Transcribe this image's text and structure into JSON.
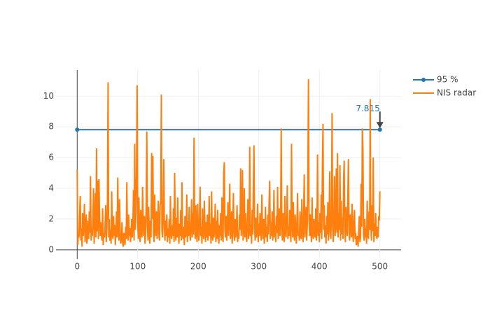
{
  "chart_data": {
    "type": "line",
    "series": [
      {
        "name": "95 %",
        "color": "#1f77b4",
        "markers": true,
        "x": [
          0,
          500
        ],
        "values": [
          7.815,
          7.815
        ]
      },
      {
        "name": "NIS radar",
        "color": "#ff7f0e",
        "markers": false,
        "x": [
          0,
          1,
          2,
          3,
          4,
          5,
          6,
          7,
          8,
          9,
          10,
          11,
          12,
          13,
          14,
          15,
          16,
          17,
          18,
          19,
          20,
          21,
          22,
          23,
          24,
          25,
          26,
          27,
          28,
          29,
          30,
          31,
          32,
          33,
          34,
          35,
          36,
          37,
          38,
          39,
          40,
          41,
          42,
          43,
          44,
          45,
          46,
          47,
          48,
          49,
          50,
          51,
          52,
          53,
          54,
          55,
          56,
          57,
          58,
          59,
          60,
          61,
          62,
          63,
          64,
          65,
          66,
          67,
          68,
          69,
          70,
          71,
          72,
          73,
          74,
          75,
          76,
          77,
          78,
          79,
          80,
          81,
          82,
          83,
          84,
          85,
          86,
          87,
          88,
          89,
          90,
          91,
          92,
          93,
          94,
          95,
          96,
          97,
          98,
          99,
          100,
          101,
          102,
          103,
          104,
          105,
          106,
          107,
          108,
          109,
          110,
          111,
          112,
          113,
          114,
          115,
          116,
          117,
          118,
          119,
          120,
          121,
          122,
          123,
          124,
          125,
          126,
          127,
          128,
          129,
          130,
          131,
          132,
          133,
          134,
          135,
          136,
          137,
          138,
          139,
          140,
          141,
          142,
          143,
          144,
          145,
          146,
          147,
          148,
          149,
          150,
          151,
          152,
          153,
          154,
          155,
          156,
          157,
          158,
          159,
          160,
          161,
          162,
          163,
          164,
          165,
          166,
          167,
          168,
          169,
          170,
          171,
          172,
          173,
          174,
          175,
          176,
          177,
          178,
          179,
          180,
          181,
          182,
          183,
          184,
          185,
          186,
          187,
          188,
          189,
          190,
          191,
          192,
          193,
          194,
          195,
          196,
          197,
          198,
          199,
          200,
          201,
          202,
          203,
          204,
          205,
          206,
          207,
          208,
          209,
          210,
          211,
          212,
          213,
          214,
          215,
          216,
          217,
          218,
          219,
          220,
          221,
          222,
          223,
          224,
          225,
          226,
          227,
          228,
          229,
          230,
          231,
          232,
          233,
          234,
          235,
          236,
          237,
          238,
          239,
          240,
          241,
          242,
          243,
          244,
          245,
          246,
          247,
          248,
          249,
          250,
          251,
          252,
          253,
          254,
          255,
          256,
          257,
          258,
          259,
          260,
          261,
          262,
          263,
          264,
          265,
          266,
          267,
          268,
          269,
          270,
          271,
          272,
          273,
          274,
          275,
          276,
          277,
          278,
          279,
          280,
          281,
          282,
          283,
          284,
          285,
          286,
          287,
          288,
          289,
          290,
          291,
          292,
          293,
          294,
          295,
          296,
          297,
          298,
          299,
          300,
          301,
          302,
          303,
          304,
          305,
          306,
          307,
          308,
          309,
          310,
          311,
          312,
          313,
          314,
          315,
          316,
          317,
          318,
          319,
          320,
          321,
          322,
          323,
          324,
          325,
          326,
          327,
          328,
          329,
          330,
          331,
          332,
          333,
          334,
          335,
          336,
          337,
          338,
          339,
          340,
          341,
          342,
          343,
          344,
          345,
          346,
          347,
          348,
          349,
          350,
          351,
          352,
          353,
          354,
          355,
          356,
          357,
          358,
          359,
          360,
          361,
          362,
          363,
          364,
          365,
          366,
          367,
          368,
          369,
          370,
          371,
          372,
          373,
          374,
          375,
          376,
          377,
          378,
          379,
          380,
          381,
          382,
          383,
          384,
          385,
          386,
          387,
          388,
          389,
          390,
          391,
          392,
          393,
          394,
          395,
          396,
          397,
          398,
          399,
          400,
          401,
          402,
          403,
          404,
          405,
          406,
          407,
          408,
          409,
          410,
          411,
          412,
          413,
          414,
          415,
          416,
          417,
          418,
          419,
          420,
          421,
          422,
          423,
          424,
          425,
          426,
          427,
          428,
          429,
          430,
          431,
          432,
          433,
          434,
          435,
          436,
          437,
          438,
          439,
          440,
          441,
          442,
          443,
          444,
          445,
          446,
          447,
          448,
          449,
          450,
          451,
          452,
          453,
          454,
          455,
          456,
          457,
          458,
          459,
          460,
          461,
          462,
          463,
          464,
          465,
          466,
          467,
          468,
          469,
          470,
          471,
          472,
          473,
          474,
          475,
          476,
          477,
          478,
          479,
          480,
          481,
          482,
          483,
          484,
          485,
          486,
          487,
          488,
          489,
          490,
          491,
          492,
          493,
          494,
          495,
          496,
          497,
          498,
          499,
          500
        ],
        "values": [
          5.2,
          0.3,
          1.1,
          0.8,
          2.1,
          3.5,
          0.6,
          1.4,
          0.2,
          2.4,
          0.9,
          1.7,
          3.0,
          0.5,
          1.2,
          2.3,
          0.4,
          0.8,
          1.9,
          0.7,
          2.5,
          1.1,
          4.8,
          0.6,
          1.3,
          0.9,
          2.2,
          4.0,
          0.4,
          1.6,
          3.7,
          0.8,
          6.6,
          1.2,
          4.5,
          0.7,
          4.6,
          2.1,
          0.9,
          1.8,
          1.0,
          0.6,
          2.7,
          0.3,
          1.1,
          0.8,
          1.5,
          2.9,
          0.5,
          1.4,
          3.1,
          10.9,
          0.8,
          2.0,
          0.6,
          1.3,
          0.4,
          3.8,
          1.1,
          0.7,
          2.2,
          0.9,
          1.6,
          0.3,
          1.2,
          2.5,
          0.8,
          4.7,
          1.4,
          0.6,
          3.3,
          1.0,
          0.4,
          0.7,
          1.8,
          0.5,
          0.2,
          1.1,
          0.9,
          0.3,
          1.5,
          0.7,
          4.4,
          1.2,
          0.6,
          2.3,
          0.9,
          1.4,
          0.5,
          1.0,
          2.0,
          0.8,
          1.6,
          3.9,
          0.6,
          6.9,
          1.3,
          2.4,
          5.2,
          10.7,
          1.8,
          0.7,
          3.4,
          1.1,
          0.5,
          2.6,
          1.3,
          0.8,
          4.1,
          1.6,
          0.9,
          2.2,
          0.4,
          1.0,
          3.0,
          7.7,
          1.5,
          0.6,
          2.8,
          1.2,
          0.4,
          1.9,
          0.8,
          6.3,
          2.0,
          6.1,
          1.1,
          0.5,
          3.6,
          1.4,
          0.9,
          2.5,
          0.7,
          1.8,
          3.2,
          1.0,
          0.6,
          2.9,
          3.1,
          10.1,
          1.3,
          0.8,
          2.4,
          5.9,
          1.5,
          0.6,
          1.9,
          0.9,
          2.3,
          0.5,
          1.4,
          0.8,
          2.0,
          0.4,
          3.5,
          1.1,
          0.7,
          1.6,
          0.9,
          2.7,
          0.5,
          5.0,
          1.2,
          0.6,
          2.1,
          0.8,
          3.4,
          1.3,
          0.4,
          1.7,
          0.9,
          2.6,
          0.6,
          4.4,
          1.0,
          0.7,
          1.5,
          0.3,
          2.2,
          0.8,
          1.1,
          3.6,
          0.5,
          1.9,
          0.9,
          2.8,
          1.2,
          0.6,
          1.4,
          3.3,
          0.8,
          2.4,
          1.0,
          7.3,
          1.6,
          0.7,
          2.9,
          1.1,
          0.5,
          3.0,
          1.3,
          0.6,
          2.0,
          4.1,
          0.9,
          1.5,
          0.4,
          2.7,
          1.1,
          0.7,
          3.2,
          1.4,
          0.5,
          1.8,
          0.8,
          2.3,
          0.6,
          1.2,
          3.5,
          0.9,
          1.7,
          0.4,
          3.8,
          1.0,
          0.6,
          2.1,
          0.8,
          1.4,
          3.0,
          0.5,
          1.9,
          0.7,
          2.6,
          1.2,
          0.4,
          1.6,
          0.9,
          2.4,
          0.6,
          3.4,
          1.1,
          0.5,
          4.9,
          5.7,
          1.3,
          0.8,
          2.2,
          0.6,
          1.5,
          3.1,
          0.9,
          1.8,
          4.3,
          0.7,
          1.2,
          2.5,
          0.4,
          1.6,
          3.7,
          1.0,
          0.6,
          2.0,
          0.8,
          1.4,
          2.9,
          0.5,
          1.1,
          0.7,
          2.3,
          1.3,
          5.3,
          0.9,
          1.7,
          5.2,
          0.6,
          1.5,
          4.0,
          0.8,
          2.4,
          1.1,
          0.5,
          1.9,
          3.3,
          0.7,
          1.2,
          6.7,
          0.9,
          1.6,
          0.4,
          2.6,
          1.0,
          4.2,
          6.8,
          1.4,
          0.6,
          2.1,
          0.8,
          1.3,
          3.0,
          0.5,
          1.7,
          0.9,
          2.4,
          1.1,
          0.6,
          3.6,
          1.4,
          0.7,
          2.0,
          0.4,
          1.2,
          2.8,
          0.8,
          1.5,
          0.5,
          2.3,
          1.0,
          3.2,
          4.5,
          0.7,
          1.8,
          0.9,
          2.5,
          0.6,
          1.3,
          3.9,
          0.8,
          1.6,
          0.5,
          2.2,
          1.1,
          4.1,
          0.7,
          1.4,
          2.7,
          0.9,
          1.9,
          7.9,
          1.2,
          0.6,
          2.4,
          1.0,
          0.5,
          3.5,
          1.3,
          0.8,
          2.0,
          4.2,
          0.7,
          1.5,
          0.9,
          2.6,
          1.2,
          0.5,
          6.9,
          1.7,
          0.8,
          3.1,
          1.1,
          0.6,
          2.3,
          1.4,
          0.4,
          1.8,
          3.7,
          0.9,
          1.2,
          0.6,
          2.5,
          1.0,
          0.7,
          3.3,
          1.5,
          0.5,
          2.1,
          4.9,
          0.8,
          1.3,
          2.8,
          0.6,
          1.6,
          4.4,
          11.1,
          1.9,
          0.9,
          2.3,
          1.2,
          0.5,
          3.4,
          1.0,
          0.7,
          2.0,
          1.5,
          0.8,
          2.7,
          0.6,
          1.4,
          6.2,
          0.9,
          1.8,
          0.5,
          2.4,
          1.1,
          3.6,
          0.7,
          5.4,
          8.2,
          1.3,
          2.9,
          0.8,
          1.6,
          0.4,
          2.2,
          1.0,
          3.1,
          0.6,
          1.5,
          5.1,
          1.2,
          0.7,
          2.6,
          8.9,
          1.4,
          0.5,
          2.0,
          4.8,
          0.9,
          1.7,
          5.3,
          1.1,
          6.3,
          0.8,
          2.4,
          1.3,
          5.5,
          0.6,
          3.2,
          1.0,
          2.1,
          0.7,
          4.6,
          5.8,
          1.2,
          0.5,
          2.8,
          1.6,
          0.9,
          3.4,
          5.9,
          1.1,
          0.6,
          2.3,
          1.4,
          0.8,
          3.0,
          1.2,
          0.5,
          1.9,
          2.6,
          0.7,
          1.1,
          0.3,
          0.6,
          0.9,
          0.2,
          1.3,
          2.2,
          0.5,
          0.8,
          4.3,
          1.5,
          7.9,
          6.5,
          1.0,
          0.6,
          2.0,
          0.8,
          1.4,
          0.4,
          3.2,
          1.1,
          0.7,
          2.5,
          1.3,
          9.8,
          1.6,
          0.6,
          2.9,
          1.2,
          6.0,
          0.5,
          1.7,
          0.9,
          2.4,
          1.1,
          0.7,
          1.5,
          0.8,
          2.2,
          1.9,
          3.8
        ]
      }
    ],
    "annotations": [
      {
        "text": "7.815",
        "x": 500,
        "y": 7.815
      }
    ],
    "xlim": [
      -35,
      535
    ],
    "ylim": [
      -0.6,
      11.7
    ],
    "xticks": [
      0,
      100,
      200,
      300,
      400,
      500
    ],
    "yticks": [
      0,
      2,
      4,
      6,
      8,
      10
    ],
    "grid": true,
    "legend": "top-right"
  }
}
